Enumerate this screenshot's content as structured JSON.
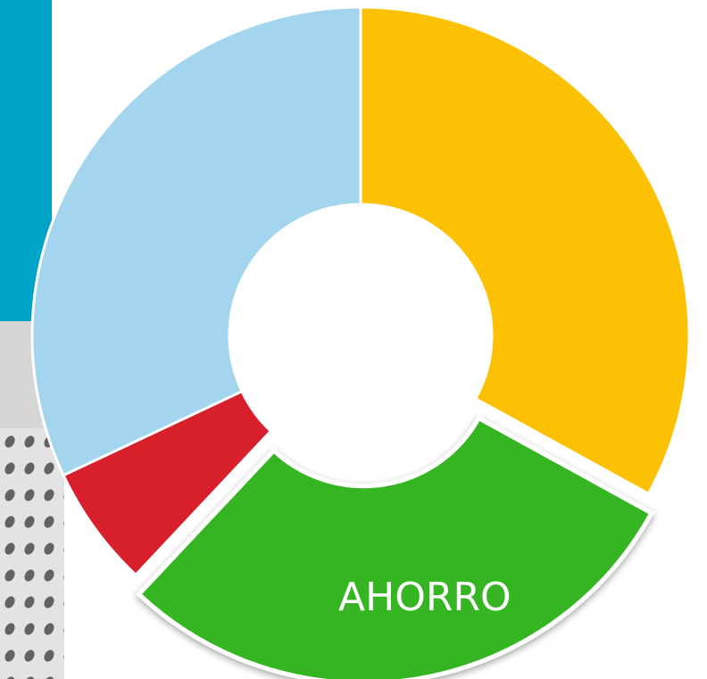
{
  "chart_data": {
    "type": "donut",
    "categories": [
      null,
      "AHORRO",
      null,
      null
    ],
    "values": [
      33,
      29,
      6,
      32
    ],
    "colors": [
      "#fbc102",
      "#34b521",
      "#d7202b",
      "#a4d5ee"
    ],
    "exploded": [
      false,
      true,
      false,
      false
    ]
  }
}
